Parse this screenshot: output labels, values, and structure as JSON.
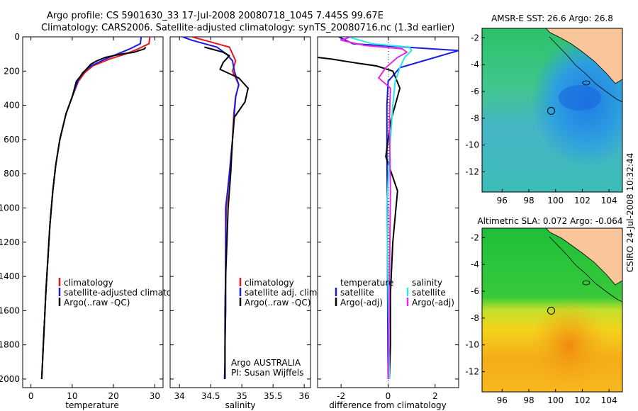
{
  "header": {
    "line1": "Argo profile: CS 5901630_33 17-Jul-2008 20080718_1045 7.445S 99.67E",
    "line2": "Climatology: CARS2006. Satellite-adjusted climatology: synTS_20080716.nc (1.3d earlier)"
  },
  "credit": "CSIRO 24-Jul-2008 10:32:44",
  "colors": {
    "climatology": "#e8141e",
    "satellite": "#1a1ae6",
    "argo": "#000000",
    "sal_satellite": "#28e6e6",
    "sal_argo": "#e628e6",
    "land": "#f9c59a"
  },
  "chart_data": [
    {
      "type": "line",
      "xlabel": "temperature",
      "ylabel": "",
      "xlim": [
        -2,
        32
      ],
      "ylim": [
        2050,
        0
      ],
      "xticks": [
        0,
        10,
        20,
        30
      ],
      "yticks": [
        0,
        200,
        400,
        600,
        800,
        1000,
        1200,
        1400,
        1600,
        1800,
        2000
      ],
      "legend": [
        "climatology",
        "satellite-adjusted climatolog",
        "Argo(..raw -QC)"
      ],
      "series": [
        {
          "name": "climatology",
          "x": [
            28.8,
            28.6,
            26,
            23,
            19,
            15,
            13,
            11.5,
            10,
            8.5,
            7,
            6,
            5.3,
            4.6,
            4.1,
            3.6,
            3.3,
            3.0,
            2.8,
            2.6
          ],
          "y": [
            0,
            40,
            70,
            100,
            130,
            170,
            210,
            260,
            350,
            450,
            600,
            750,
            900,
            1100,
            1300,
            1500,
            1650,
            1800,
            1900,
            2000
          ]
        },
        {
          "name": "satellite-adjusted climatology",
          "x": [
            26.7,
            26.5,
            24,
            21,
            18,
            14.5,
            12.5,
            11.3,
            10,
            8.5,
            7,
            6,
            5.3,
            4.6,
            4.1,
            3.6,
            3.3,
            3.0,
            2.8,
            2.6
          ],
          "y": [
            0,
            40,
            70,
            100,
            130,
            170,
            210,
            260,
            350,
            450,
            600,
            750,
            900,
            1100,
            1300,
            1500,
            1650,
            1800,
            1900,
            2000
          ]
        },
        {
          "name": "Argo(..raw -QC)",
          "x": [
            27.8,
            27.5,
            25,
            22,
            18,
            16,
            14.5,
            13,
            11,
            10,
            8.5,
            7,
            6,
            5.3,
            4.6,
            4.1,
            3.6,
            3.3,
            3.0,
            2.8,
            2.6
          ],
          "y": [
            60,
            70,
            90,
            100,
            120,
            140,
            160,
            200,
            260,
            350,
            450,
            600,
            750,
            900,
            1100,
            1300,
            1500,
            1650,
            1800,
            1900,
            2000
          ]
        }
      ]
    },
    {
      "type": "line",
      "xlabel": "salinity",
      "ylabel": "",
      "xlim": [
        33.85,
        36.1
      ],
      "ylim": [
        2050,
        0
      ],
      "xticks": [
        34,
        34.5,
        35,
        35.5,
        36
      ],
      "legend": [
        "climatology",
        "satellite adj. clim.",
        "Argo(..raw -QC)"
      ],
      "annotation": [
        "Argo AUSTRALIA",
        "PI: Susan Wijffels"
      ],
      "series": [
        {
          "name": "climatology",
          "x": [
            34.2,
            34.4,
            34.6,
            34.8,
            34.85,
            34.9,
            34.85,
            34.95,
            34.9,
            34.87,
            34.85,
            34.8,
            34.75,
            34.74,
            34.74,
            34.73,
            34.73,
            34.73,
            34.73
          ],
          "y": [
            0,
            20,
            40,
            60,
            100,
            140,
            200,
            280,
            350,
            450,
            600,
            800,
            1000,
            1200,
            1400,
            1600,
            1800,
            1900,
            2000
          ]
        },
        {
          "name": "satellite adj. clim.",
          "x": [
            34.05,
            34.2,
            34.4,
            34.6,
            34.75,
            34.85,
            34.88,
            34.95,
            34.9,
            34.88,
            34.85,
            34.8,
            34.74,
            34.74,
            34.74,
            34.73,
            34.73,
            34.73,
            34.72
          ],
          "y": [
            0,
            20,
            40,
            60,
            100,
            140,
            200,
            280,
            350,
            450,
            600,
            800,
            1000,
            1200,
            1400,
            1600,
            1800,
            1900,
            2000
          ]
        },
        {
          "name": "Argo(..raw -QC)",
          "x": [
            34.4,
            34.5,
            34.7,
            34.8,
            34.7,
            34.65,
            34.95,
            35.1,
            35.05,
            34.88,
            34.85,
            34.82,
            34.78,
            34.76,
            34.74,
            34.74,
            34.73,
            34.73,
            34.73
          ],
          "y": [
            60,
            70,
            90,
            110,
            150,
            190,
            240,
            300,
            380,
            470,
            600,
            800,
            1000,
            1200,
            1400,
            1600,
            1800,
            1900,
            2000
          ]
        }
      ]
    },
    {
      "type": "line",
      "xlabel": "difference from climatology",
      "ylabel": "",
      "xlim": [
        -3,
        3
      ],
      "ylim": [
        2050,
        0
      ],
      "xticks": [
        -2,
        0,
        2
      ],
      "legend": [
        "temperature",
        "satellite",
        "Argo(-adj)",
        "salinity",
        "satellite",
        "Argo(-adj)"
      ],
      "series": [
        {
          "name": "temperature satellite",
          "x": [
            -2.1,
            -1.5,
            3.0,
            2.0,
            0.5,
            0,
            -0.05,
            -0.05,
            -0.03,
            -0.02,
            0
          ],
          "y": [
            0,
            40,
            80,
            120,
            180,
            260,
            400,
            700,
            1000,
            1500,
            2000
          ]
        },
        {
          "name": "temperature Argo(-adj)",
          "x": [
            -3,
            -2.4,
            -1.5,
            -0.5,
            0.2,
            0.5,
            0.1,
            -0.1,
            0.4,
            0.2,
            0.1,
            0.1,
            0.05
          ],
          "y": [
            120,
            130,
            150,
            170,
            200,
            300,
            500,
            700,
            900,
            1200,
            1500,
            1800,
            2000
          ]
        },
        {
          "name": "salinity satellite",
          "x": [
            -1.7,
            -1.2,
            -0.7,
            0.9,
            1.0,
            0.7,
            0.5,
            0.3,
            0.2,
            0.05,
            -0.05,
            0,
            0.05
          ],
          "y": [
            0,
            20,
            40,
            60,
            80,
            120,
            180,
            260,
            400,
            700,
            1000,
            1500,
            2000
          ]
        },
        {
          "name": "salinity Argo(-adj)",
          "x": [
            -1.6,
            -2.0,
            -1.0,
            0.6,
            0.8,
            0.4,
            -0.1,
            -0.4,
            0.1,
            0.05,
            0.1,
            0.05,
            0
          ],
          "y": [
            0,
            20,
            50,
            70,
            90,
            120,
            180,
            240,
            300,
            500,
            900,
            1500,
            2000
          ]
        }
      ]
    },
    {
      "type": "heatmap",
      "title": "AMSR-E SST: 26.6 Argo: 26.8",
      "xticks": [
        96,
        98,
        100,
        102,
        104
      ],
      "yticks": [
        -2,
        -4,
        -6,
        -8,
        -10,
        -12
      ],
      "xlim": [
        94.5,
        105
      ],
      "ylim": [
        -13.5,
        -1.3
      ],
      "argo_position": {
        "lon": 99.67,
        "lat": -7.445
      }
    },
    {
      "type": "heatmap",
      "title": "Altimetric SLA: 0.072 Argo: -0.064",
      "xticks": [
        96,
        98,
        100,
        102,
        104
      ],
      "yticks": [
        -2,
        -4,
        -6,
        -8,
        -10,
        -12
      ],
      "xlim": [
        94.5,
        105
      ],
      "ylim": [
        -13.5,
        -1.3
      ],
      "argo_position": {
        "lon": 99.67,
        "lat": -7.445
      }
    }
  ]
}
